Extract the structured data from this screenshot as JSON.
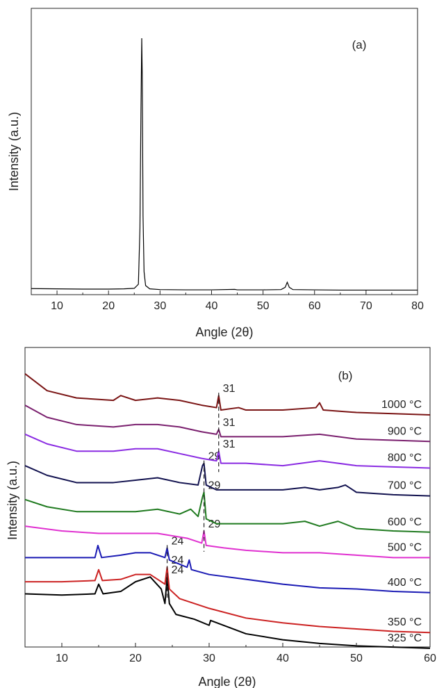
{
  "chart_data": [
    {
      "panel_label": "(a)",
      "type": "line",
      "xlabel": "Angle (2θ)",
      "ylabel": "Intensity (a.u.)",
      "xlim": [
        5,
        80
      ],
      "xticks": [
        10,
        20,
        30,
        40,
        50,
        60,
        70,
        80
      ],
      "y_axis_ticks": false,
      "grid": false,
      "line_color": "#000000",
      "series": [
        {
          "x": [
            5,
            10,
            15,
            20,
            23,
            25,
            25.8,
            26.1,
            26.3,
            26.45,
            26.55,
            26.7,
            26.9,
            27.2,
            28,
            30,
            35,
            40,
            44.5,
            45,
            50,
            53.5,
            54.3,
            54.7,
            55.1,
            55.8,
            60,
            65,
            70,
            75,
            80
          ],
          "y": [
            0.013,
            0.012,
            0.011,
            0.011,
            0.012,
            0.014,
            0.03,
            0.25,
            0.72,
            1.0,
            0.85,
            0.3,
            0.08,
            0.025,
            0.012,
            0.009,
            0.008,
            0.008,
            0.01,
            0.008,
            0.008,
            0.009,
            0.018,
            0.038,
            0.018,
            0.009,
            0.008,
            0.007,
            0.007,
            0.007,
            0.007
          ]
        }
      ]
    },
    {
      "panel_label": "(b)",
      "type": "line",
      "xlabel": "Angle (2θ)",
      "ylabel": "Intensity (a.u.)",
      "xlim": [
        5,
        60
      ],
      "xticks": [
        10,
        20,
        30,
        40,
        50,
        60
      ],
      "y_axis_ticks": false,
      "grid": false,
      "stacked": true,
      "series": [
        {
          "name": "325 °C",
          "color": "#000000",
          "x": [
            5,
            10,
            14.5,
            15,
            15.6,
            18,
            20,
            22,
            23.5,
            24,
            24.3,
            24.6,
            25.5,
            28,
            30,
            30.2,
            35,
            40,
            45,
            50,
            55,
            60
          ],
          "y": [
            0.26,
            0.255,
            0.26,
            0.3,
            0.26,
            0.27,
            0.31,
            0.33,
            0.28,
            0.22,
            0.33,
            0.22,
            0.175,
            0.155,
            0.13,
            0.15,
            0.095,
            0.07,
            0.055,
            0.045,
            0.04,
            0.035
          ],
          "peak_label": "24",
          "peak_x": 24.3
        },
        {
          "name": "350 °C",
          "color": "#cc2222",
          "x": [
            5,
            10,
            14.5,
            15,
            15.5,
            18,
            20,
            22,
            24,
            24.3,
            24.6,
            26,
            28,
            30,
            35,
            40,
            45,
            50,
            55,
            60
          ],
          "y": [
            0.31,
            0.31,
            0.315,
            0.36,
            0.315,
            0.32,
            0.34,
            0.34,
            0.3,
            0.37,
            0.28,
            0.24,
            0.22,
            0.2,
            0.16,
            0.14,
            0.125,
            0.115,
            0.105,
            0.1
          ],
          "peak_label": "24",
          "peak_x": 24.3
        },
        {
          "name": "400 °C",
          "color": "#1a1ab4",
          "x": [
            5,
            10,
            14.5,
            14.9,
            15.4,
            18,
            20,
            22,
            24,
            24.3,
            24.6,
            27,
            27.3,
            27.6,
            30,
            35,
            40,
            45,
            50,
            55,
            60
          ],
          "y": [
            0.41,
            0.41,
            0.41,
            0.46,
            0.41,
            0.42,
            0.43,
            0.43,
            0.41,
            0.45,
            0.4,
            0.37,
            0.4,
            0.36,
            0.34,
            0.32,
            0.3,
            0.285,
            0.28,
            0.27,
            0.265
          ],
          "peak_label": "24",
          "peak_x": 24.3
        },
        {
          "name": "500 °C",
          "color": "#e030d0",
          "x": [
            5,
            10,
            15,
            20,
            23,
            27,
            29,
            29.3,
            29.6,
            32,
            35,
            40,
            45,
            50,
            55,
            60
          ],
          "y": [
            0.54,
            0.52,
            0.51,
            0.51,
            0.51,
            0.49,
            0.47,
            0.52,
            0.46,
            0.45,
            0.44,
            0.43,
            0.43,
            0.42,
            0.41,
            0.41
          ],
          "peak_label": "29",
          "peak_x": 29.3
        },
        {
          "name": "600 °C",
          "color": "#1f7a1f",
          "x": [
            5,
            8,
            12,
            17,
            20,
            23,
            26,
            27.5,
            28.5,
            29.1,
            29.3,
            29.6,
            31,
            35,
            40,
            43,
            45,
            47.5,
            50,
            55,
            60
          ],
          "y": [
            0.65,
            0.62,
            0.6,
            0.6,
            0.6,
            0.61,
            0.59,
            0.61,
            0.58,
            0.66,
            0.68,
            0.57,
            0.55,
            0.55,
            0.55,
            0.56,
            0.54,
            0.56,
            0.53,
            0.52,
            0.515
          ],
          "peak_label": "29",
          "peak_x": 29.3
        },
        {
          "name": "700 °C",
          "color": "#12124f",
          "x": [
            5,
            8,
            12,
            17,
            20,
            23,
            26,
            28.5,
            29.1,
            29.3,
            29.6,
            31,
            35,
            40,
            43,
            45,
            47.5,
            48.5,
            50,
            55,
            60
          ],
          "y": [
            0.79,
            0.75,
            0.72,
            0.72,
            0.73,
            0.74,
            0.72,
            0.71,
            0.79,
            0.8,
            0.71,
            0.69,
            0.69,
            0.69,
            0.7,
            0.69,
            0.7,
            0.71,
            0.68,
            0.67,
            0.665
          ],
          "peak_label": "29",
          "peak_x": 29.3
        },
        {
          "name": "800 °C",
          "color": "#8a2be2",
          "x": [
            5,
            8,
            12,
            17,
            20,
            23,
            26,
            29,
            31,
            31.3,
            31.6,
            33,
            35,
            40,
            45,
            50,
            55,
            60
          ],
          "y": [
            0.92,
            0.88,
            0.85,
            0.85,
            0.86,
            0.86,
            0.84,
            0.82,
            0.81,
            0.85,
            0.8,
            0.8,
            0.8,
            0.79,
            0.81,
            0.79,
            0.785,
            0.78
          ],
          "peak_label": "31",
          "peak_x": 31.3
        },
        {
          "name": "900 °C",
          "color": "#7a1f6e",
          "x": [
            5,
            8,
            12,
            17,
            20,
            23,
            26,
            29,
            31,
            31.3,
            31.6,
            33,
            35,
            40,
            45,
            50,
            55,
            60
          ],
          "y": [
            1.04,
            0.99,
            0.96,
            0.95,
            0.96,
            0.96,
            0.95,
            0.93,
            0.92,
            0.94,
            0.91,
            0.91,
            0.91,
            0.91,
            0.92,
            0.9,
            0.895,
            0.89
          ],
          "peak_label": "31",
          "peak_x": 31.3
        },
        {
          "name": "1000 °C",
          "color": "#7a1414",
          "x": [
            5,
            8,
            12,
            17,
            18,
            20,
            23,
            26,
            29,
            31,
            31.3,
            31.6,
            34,
            35,
            40,
            44.5,
            45,
            45.5,
            50,
            55,
            60
          ],
          "y": [
            1.17,
            1.1,
            1.07,
            1.06,
            1.08,
            1.06,
            1.07,
            1.06,
            1.04,
            1.03,
            1.08,
            1.02,
            1.03,
            1.02,
            1.02,
            1.03,
            1.05,
            1.02,
            1.01,
            1.005,
            1.0
          ],
          "peak_label": "31",
          "peak_x": 31.3
        }
      ]
    }
  ]
}
